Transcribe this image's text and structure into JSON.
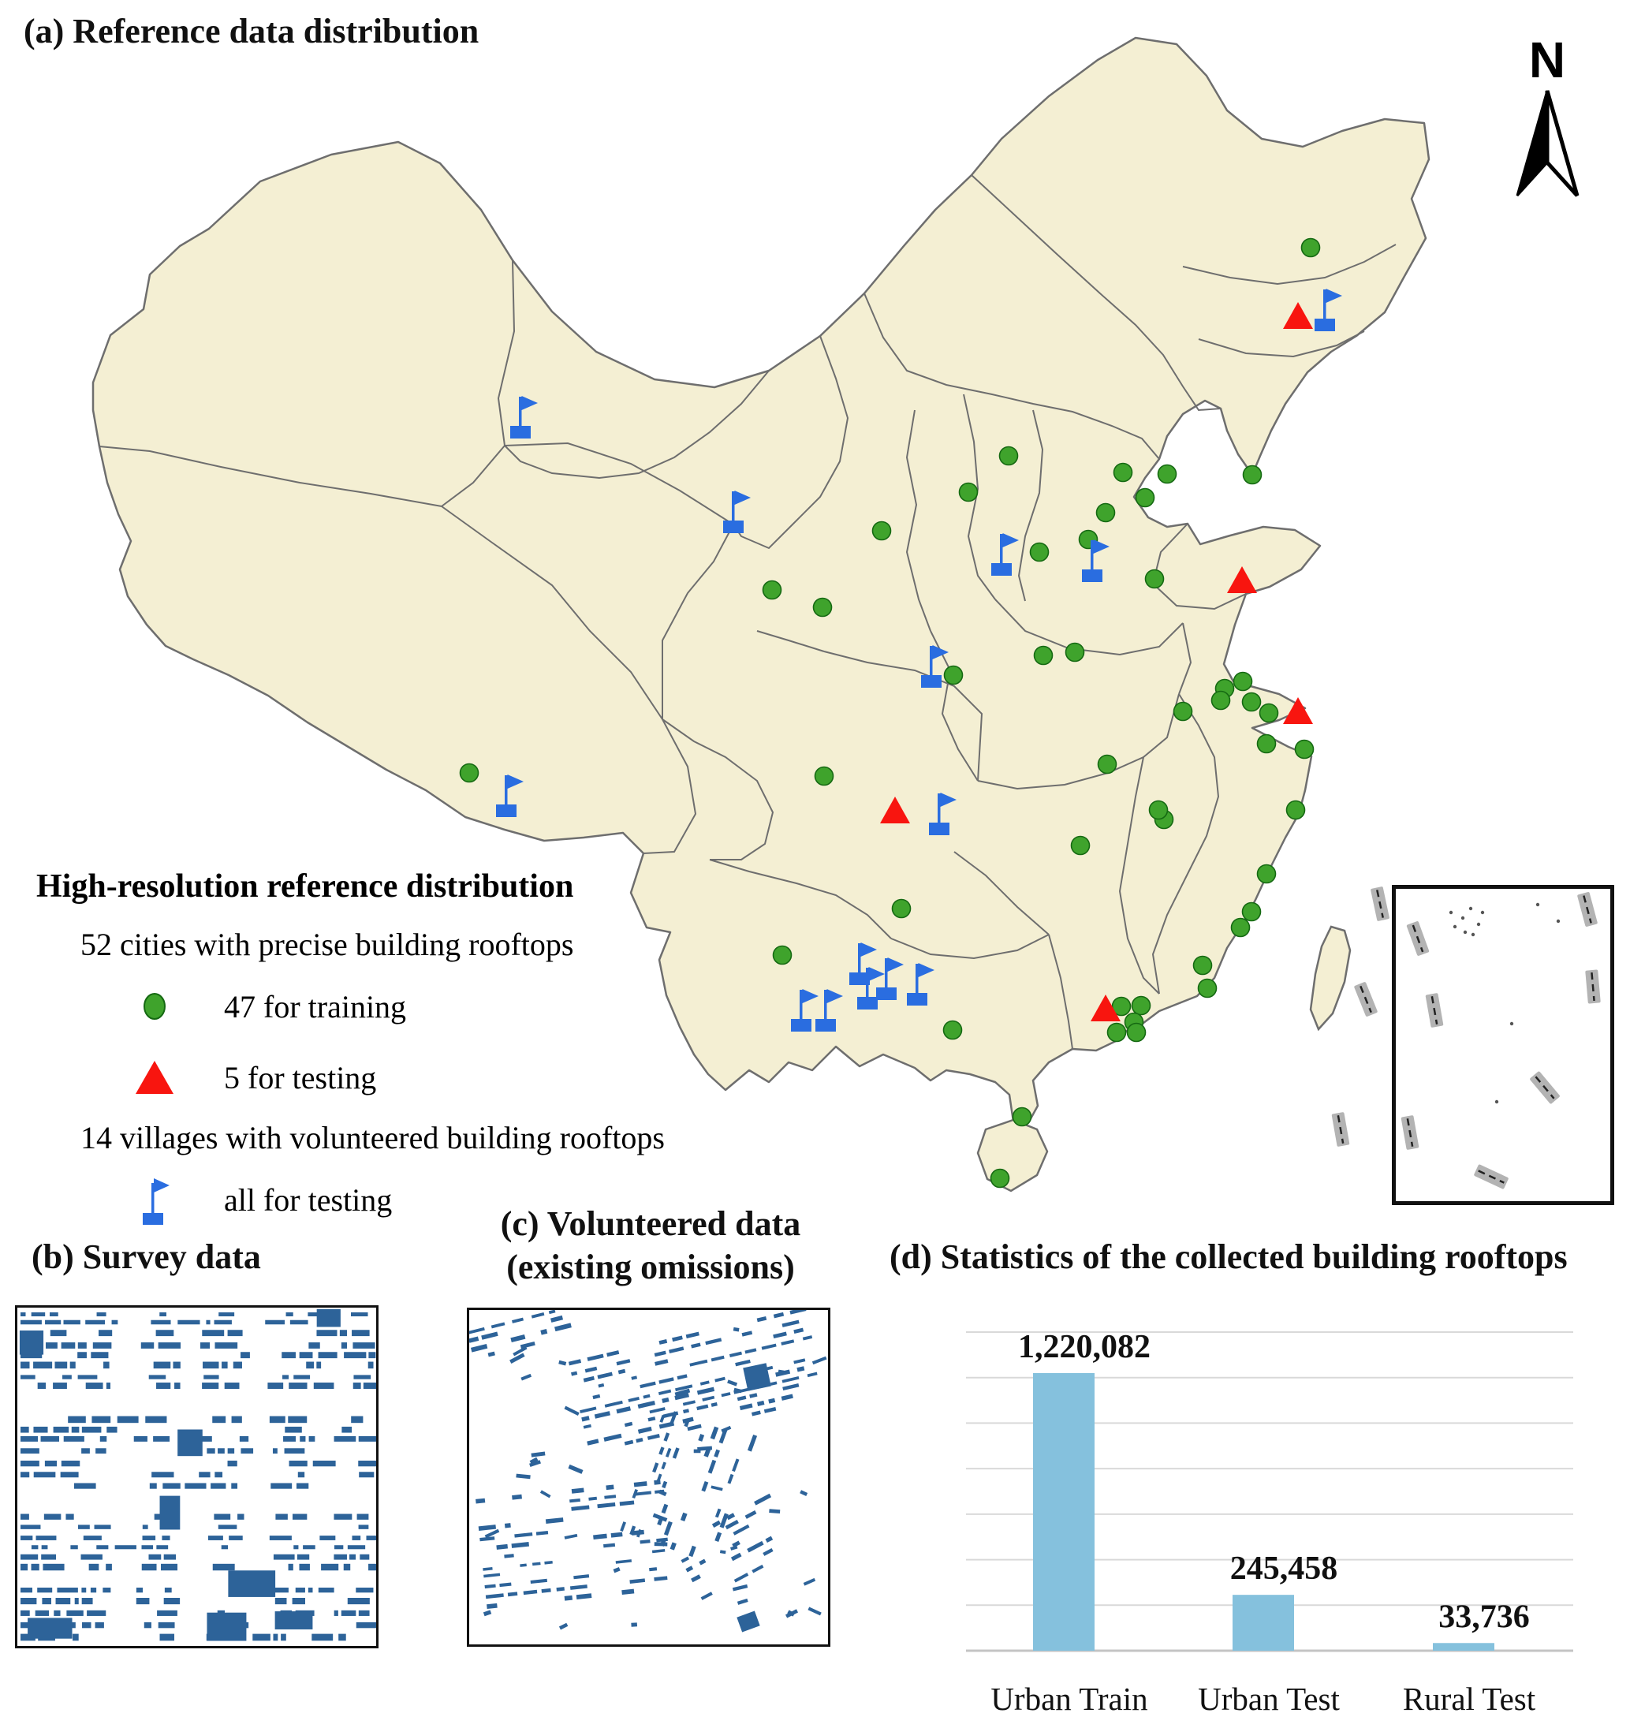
{
  "page": {
    "title_a": "(a) Reference data distribution",
    "title_b": "(b) Survey data",
    "title_c_line1": "(c) Volunteered data",
    "title_c_line2": "(existing omissions)",
    "title_d": "(d) Statistics of the collected building rooftops",
    "north_label": "N"
  },
  "legend": {
    "title": "High-resolution reference distribution",
    "cities_line": "52 cities with precise building rooftops",
    "training_label": "47 for training",
    "testing_label": "5 for testing",
    "villages_line": "14 villages with volunteered building rooftops",
    "villages_label": "all for testing"
  },
  "map": {
    "land_color": "#f4efd3",
    "border_color": "#6e6e6e",
    "training_color": "#3fa32c",
    "testing_color": "#f8150f",
    "village_color": "#2a6de0",
    "training_cities": [
      [
        1662,
        314
      ],
      [
        1588,
        602
      ],
      [
        1279,
        578
      ],
      [
        1228,
        624
      ],
      [
        1424,
        599
      ],
      [
        1480,
        601
      ],
      [
        1452,
        631
      ],
      [
        1402,
        650
      ],
      [
        1380,
        684
      ],
      [
        1318,
        700
      ],
      [
        1464,
        734
      ],
      [
        1323,
        831
      ],
      [
        1363,
        827
      ],
      [
        1209,
        856
      ],
      [
        1118,
        673
      ],
      [
        979,
        748
      ],
      [
        1043,
        770
      ],
      [
        1045,
        984
      ],
      [
        595,
        980
      ],
      [
        1404,
        969
      ],
      [
        1476,
        1039
      ],
      [
        1370,
        1072
      ],
      [
        1143,
        1152
      ],
      [
        992,
        1211
      ],
      [
        1208,
        1306
      ],
      [
        1469,
        1027
      ],
      [
        1576,
        864
      ],
      [
        1553,
        873
      ],
      [
        1548,
        888
      ],
      [
        1587,
        890
      ],
      [
        1500,
        902
      ],
      [
        1609,
        904
      ],
      [
        1606,
        943
      ],
      [
        1654,
        950
      ],
      [
        1643,
        1027
      ],
      [
        1606,
        1108
      ],
      [
        1587,
        1156
      ],
      [
        1573,
        1176
      ],
      [
        1525,
        1224
      ],
      [
        1422,
        1276
      ],
      [
        1447,
        1275
      ],
      [
        1438,
        1296
      ],
      [
        1416,
        1309
      ],
      [
        1441,
        1309
      ],
      [
        1296,
        1416
      ],
      [
        1268,
        1494
      ],
      [
        1531,
        1253
      ]
    ],
    "testing_cities": [
      [
        1646,
        403
      ],
      [
        1575,
        738
      ],
      [
        1646,
        904
      ],
      [
        1135,
        1030
      ],
      [
        1402,
        1281
      ]
    ],
    "villages": [
      [
        660,
        548
      ],
      [
        930,
        668
      ],
      [
        1270,
        722
      ],
      [
        1385,
        730
      ],
      [
        1181,
        864
      ],
      [
        1191,
        1051
      ],
      [
        1090,
        1241
      ],
      [
        1124,
        1260
      ],
      [
        1163,
        1267
      ],
      [
        1016,
        1300
      ],
      [
        1047,
        1300
      ],
      [
        642,
        1028
      ],
      [
        1680,
        412
      ],
      [
        1100,
        1272
      ]
    ],
    "dash_segments": [
      [
        1750,
        1146,
        78
      ],
      [
        1732,
        1267,
        68
      ],
      [
        1700,
        1432,
        80
      ]
    ]
  },
  "inset": {
    "segments": [
      [
        28,
        63,
        70
      ],
      [
        243,
        26,
        75
      ],
      [
        49,
        154,
        80
      ],
      [
        250,
        124,
        85
      ],
      [
        189,
        252,
        50
      ],
      [
        18,
        309,
        80
      ],
      [
        121,
        365,
        25
      ]
    ],
    "dots": [
      [
        85,
        37
      ],
      [
        95,
        25
      ],
      [
        75,
        48
      ],
      [
        105,
        45
      ],
      [
        88,
        55
      ],
      [
        70,
        30
      ],
      [
        110,
        30
      ],
      [
        98,
        58
      ],
      [
        180,
        20
      ],
      [
        206,
        41
      ],
      [
        147,
        171
      ],
      [
        128,
        270
      ]
    ]
  },
  "panel_b": {
    "color": "#2d6399",
    "seed": 7
  },
  "panel_c": {
    "color": "#2d6399",
    "seed": 11
  },
  "chart_data": {
    "type": "bar",
    "categories": [
      "Urban Train",
      "Urban Test",
      "Rural Test"
    ],
    "values": [
      1220082,
      245458,
      33736
    ],
    "value_labels": [
      "1,220,082",
      "245,458",
      "33,736"
    ],
    "title": "(d) Statistics of the collected building rooftops",
    "xlabel": "",
    "ylabel": "",
    "ylim": [
      0,
      1400000
    ],
    "gridline_step": 200000,
    "bar_color": "#85c1dd",
    "grid": true,
    "legend_position": "none"
  }
}
